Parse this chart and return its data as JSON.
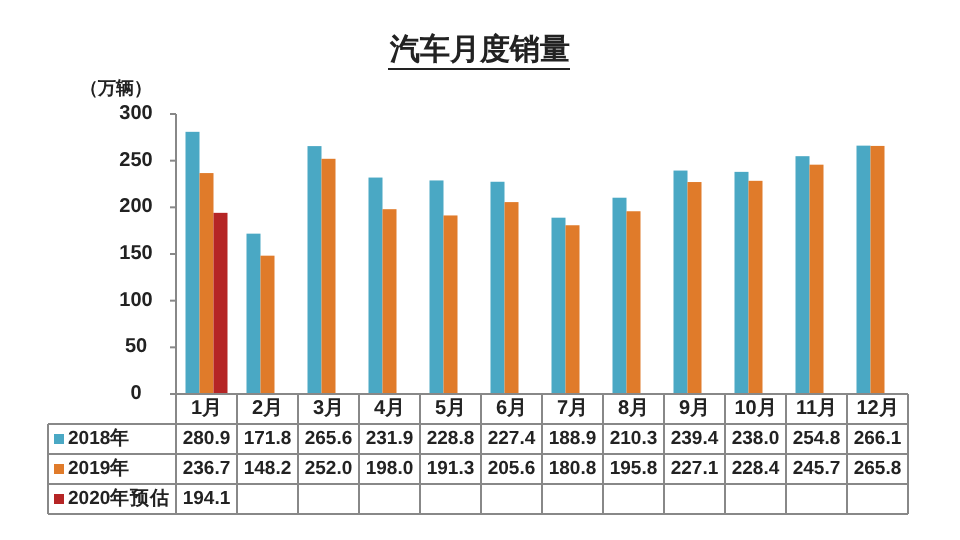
{
  "chart_data": {
    "type": "bar",
    "title": "汽车月度销量",
    "ylabel": "（万辆）",
    "categories": [
      "1月",
      "2月",
      "3月",
      "4月",
      "5月",
      "6月",
      "7月",
      "8月",
      "9月",
      "10月",
      "11月",
      "12月"
    ],
    "series": [
      {
        "name": "2018年",
        "color": "#4aa8c4",
        "values": [
          280.9,
          171.8,
          265.6,
          231.9,
          228.8,
          227.4,
          188.9,
          210.3,
          239.4,
          238.0,
          254.8,
          266.1
        ],
        "value_labels": [
          "280.9",
          "171.8",
          "265.6",
          "231.9",
          "228.8",
          "227.4",
          "188.9",
          "210.3",
          "239.4",
          "238.0",
          "254.8",
          "266.1"
        ]
      },
      {
        "name": "2019年",
        "color": "#e07b2a",
        "values": [
          236.7,
          148.2,
          252.0,
          198.0,
          191.3,
          205.6,
          180.8,
          195.8,
          227.1,
          228.4,
          245.7,
          265.8
        ],
        "value_labels": [
          "236.7",
          "148.2",
          "252.0",
          "198.0",
          "191.3",
          "205.6",
          "180.8",
          "195.8",
          "227.1",
          "228.4",
          "245.7",
          "265.8"
        ]
      },
      {
        "name": "2020年预估",
        "color": "#b52525",
        "values": [
          194.1,
          null,
          null,
          null,
          null,
          null,
          null,
          null,
          null,
          null,
          null,
          null
        ],
        "value_labels": [
          "194.1",
          null,
          null,
          null,
          null,
          null,
          null,
          null,
          null,
          null,
          null,
          null
        ]
      }
    ],
    "ylim": [
      0,
      300
    ],
    "yticks": [
      0,
      50,
      100,
      150,
      200,
      250,
      300
    ],
    "legend": "bottom",
    "grid": false
  }
}
